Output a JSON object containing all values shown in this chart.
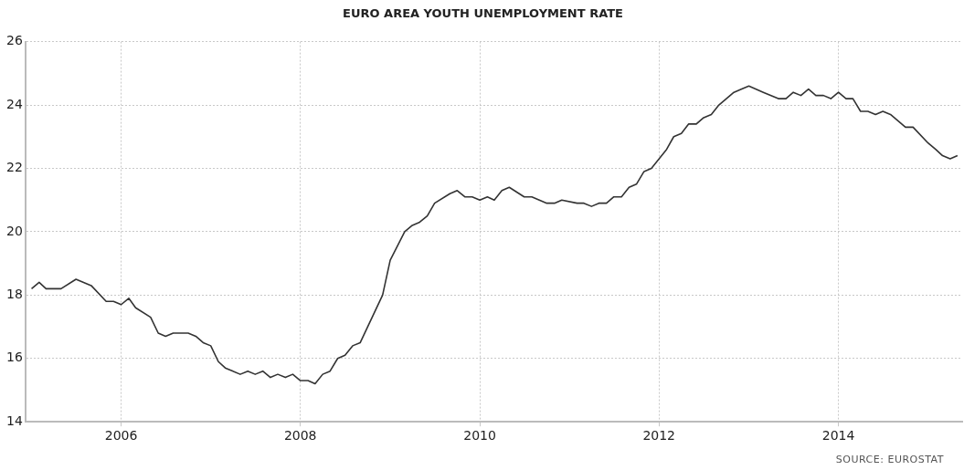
{
  "chart_data": {
    "type": "line",
    "title": "EURO AREA YOUTH UNEMPLOYMENT RATE",
    "annotations": [
      "SOURCE: EUROSTAT"
    ],
    "x": [
      "2005-01",
      "2005-02",
      "2005-03",
      "2005-05",
      "2005-07",
      "2005-09",
      "2005-11",
      "2005-12",
      "2006-01",
      "2006-02",
      "2006-03",
      "2006-05",
      "2006-06",
      "2006-07",
      "2006-08",
      "2006-10",
      "2006-11",
      "2006-12",
      "2007-01",
      "2007-02",
      "2007-03",
      "2007-05",
      "2007-06",
      "2007-07",
      "2007-08",
      "2007-09",
      "2007-10",
      "2007-11",
      "2007-12",
      "2008-01",
      "2008-02",
      "2008-03",
      "2008-04",
      "2008-05",
      "2008-06",
      "2008-07",
      "2008-08",
      "2008-09",
      "2008-12",
      "2009-01",
      "2009-03",
      "2009-04",
      "2009-05",
      "2009-06",
      "2009-07",
      "2009-09",
      "2009-10",
      "2009-11",
      "2009-12",
      "2010-01",
      "2010-02",
      "2010-03",
      "2010-04",
      "2010-05",
      "2010-07",
      "2010-08",
      "2010-10",
      "2010-11",
      "2010-12",
      "2011-02",
      "2011-03",
      "2011-04",
      "2011-05",
      "2011-06",
      "2011-07",
      "2011-08",
      "2011-09",
      "2011-10",
      "2011-11",
      "2011-12",
      "2012-02",
      "2012-03",
      "2012-04",
      "2012-05",
      "2012-06",
      "2012-07",
      "2012-08",
      "2012-09",
      "2012-11",
      "2012-12",
      "2013-01",
      "2013-03",
      "2013-05",
      "2013-06",
      "2013-07",
      "2013-08",
      "2013-09",
      "2013-10",
      "2013-11",
      "2013-12",
      "2014-01",
      "2014-02",
      "2014-03",
      "2014-04",
      "2014-05",
      "2014-06",
      "2014-07",
      "2014-08",
      "2014-10",
      "2014-11",
      "2015-01",
      "2015-02",
      "2015-03",
      "2015-04",
      "2015-05"
    ],
    "series": [
      {
        "color": "#333333",
        "values": [
          18.2,
          18.4,
          18.2,
          18.2,
          18.5,
          18.3,
          17.8,
          17.8,
          17.7,
          17.9,
          17.6,
          17.3,
          16.8,
          16.7,
          16.8,
          16.8,
          16.7,
          16.5,
          16.4,
          15.9,
          15.7,
          15.5,
          15.6,
          15.5,
          15.6,
          15.4,
          15.5,
          15.4,
          15.5,
          15.3,
          15.3,
          15.2,
          15.5,
          15.6,
          16.0,
          16.1,
          16.4,
          16.5,
          18.0,
          19.1,
          20.0,
          20.2,
          20.3,
          20.5,
          20.9,
          21.2,
          21.3,
          21.1,
          21.1,
          21.0,
          21.1,
          21.0,
          21.3,
          21.4,
          21.1,
          21.1,
          20.9,
          20.9,
          21.0,
          20.9,
          20.9,
          20.8,
          20.9,
          20.9,
          21.1,
          21.1,
          21.4,
          21.5,
          21.9,
          22.0,
          22.6,
          23.0,
          23.1,
          23.4,
          23.4,
          23.6,
          23.7,
          24.0,
          24.4,
          24.5,
          24.6,
          24.4,
          24.2,
          24.2,
          24.4,
          24.3,
          24.5,
          24.3,
          24.3,
          24.2,
          24.4,
          24.2,
          24.2,
          23.8,
          23.8,
          23.7,
          23.8,
          23.7,
          23.3,
          23.3,
          22.8,
          22.6,
          22.4,
          22.3,
          22.4
        ]
      }
    ],
    "xlim": [
      "2004-12-07",
      "2015-05-20"
    ],
    "xticks": [
      "2006",
      "2008",
      "2010",
      "2012",
      "2014"
    ],
    "ylim": [
      14,
      26
    ],
    "yticks": [
      14,
      16,
      18,
      20,
      22,
      24,
      26
    ],
    "grid": true,
    "legend": false,
    "marker": "none",
    "line_style": "solid"
  }
}
